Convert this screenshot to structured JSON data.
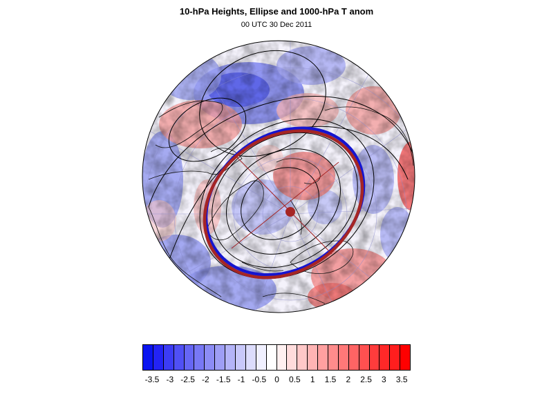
{
  "title": "10-hPa Heights, Ellipse and 1000-hPa T anom",
  "subtitle": "00 UTC 30 Dec 2011",
  "colorbar": {
    "labels": [
      "-3.5",
      "-3",
      "-2.5",
      "-2",
      "-1.5",
      "-1",
      "-0.5",
      "0",
      "0.5",
      "1",
      "1.5",
      "2",
      "2.5",
      "3",
      "3.5"
    ],
    "colors": [
      "#0a14f0",
      "#2323f5",
      "#3c3cf5",
      "#5050f5",
      "#6666f5",
      "#7878f5",
      "#8c8cf5",
      "#9e9ef5",
      "#b4b4f8",
      "#c8c8fa",
      "#dcdcfc",
      "#f0f0ff",
      "#ffffff",
      "#fff0f0",
      "#ffdcdc",
      "#ffc8c8",
      "#ffb4b4",
      "#ffa0a0",
      "#ff8c8c",
      "#ff7878",
      "#ff6464",
      "#ff5050",
      "#ff3c3c",
      "#ff2828",
      "#ff1e1e",
      "#ff0000"
    ]
  },
  "map_colors": {
    "ellipse_blue": "#1515d0",
    "ellipse_red": "#a52525",
    "contours": "#000000"
  }
}
